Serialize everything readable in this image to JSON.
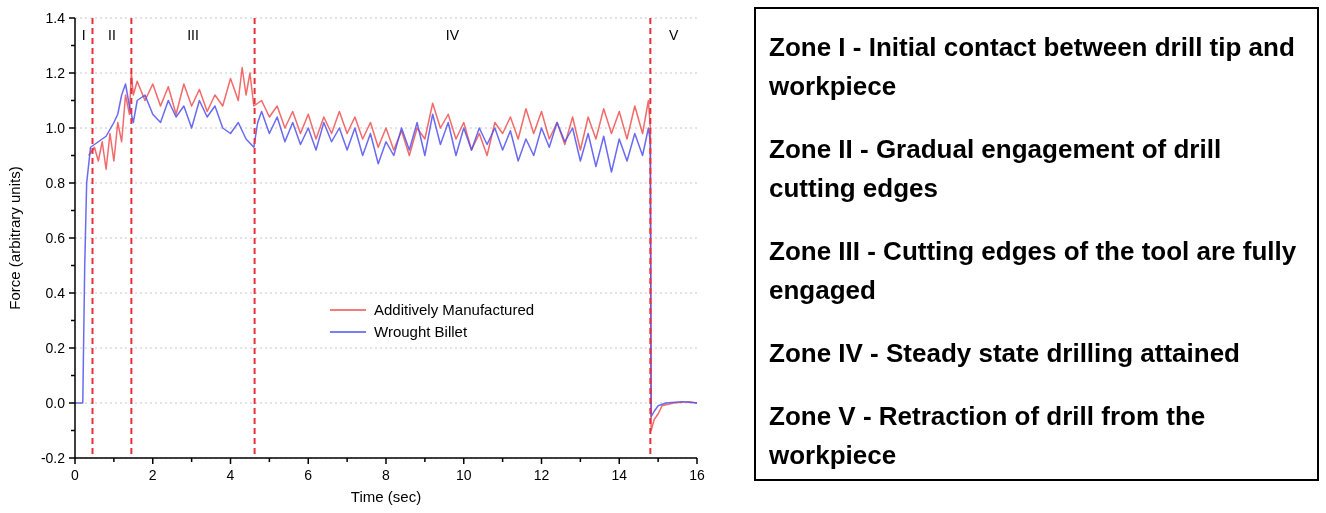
{
  "chart_data": [
    {
      "type": "line",
      "xlabel": "Time (sec)",
      "ylabel": "Force (arbitrary units)",
      "xlim": [
        0,
        16
      ],
      "ylim": [
        -0.2,
        1.4
      ],
      "xticks": [
        0,
        {
          "value": 1,
          "label": null
        },
        2,
        {
          "value": 3,
          "label": null
        },
        4,
        {
          "value": 5,
          "label": null
        },
        6,
        {
          "value": 7,
          "label": null
        },
        8,
        {
          "value": 9,
          "label": null
        },
        10,
        {
          "value": 11,
          "label": null
        },
        12,
        {
          "value": 13,
          "label": null
        },
        14,
        {
          "value": 15,
          "label": null
        },
        16
      ],
      "yticks": [
        {
          "value": -0.2,
          "label": "-0.2"
        },
        {
          "value": -0.1,
          "label": null
        },
        {
          "value": 0,
          "label": "0.0"
        },
        {
          "value": 0.1,
          "label": null
        },
        {
          "value": 0.2,
          "label": "0.2"
        },
        {
          "value": 0.3,
          "label": null
        },
        {
          "value": 0.4,
          "label": "0.4"
        },
        {
          "value": 0.5,
          "label": null
        },
        {
          "value": 0.6,
          "label": "0.6"
        },
        {
          "value": 0.7,
          "label": null
        },
        {
          "value": 0.8,
          "label": "0.8"
        },
        {
          "value": 0.9,
          "label": null
        },
        {
          "value": 1,
          "label": "1.0"
        },
        {
          "value": 1.1,
          "label": null
        },
        {
          "value": 1.2,
          "label": "1.2"
        },
        {
          "value": 1.3,
          "label": null
        },
        {
          "value": 1.4,
          "label": "1.4"
        }
      ],
      "grid": "y",
      "legend": "center",
      "line_style": "solid",
      "series": [
        {
          "name": "Additively Manufactured",
          "color": "#f05050",
          "x": [
            0.35,
            0.5,
            0.6,
            0.7,
            0.8,
            0.9,
            1.0,
            1.1,
            1.2,
            1.3,
            1.4,
            1.45,
            1.5,
            1.6,
            1.8,
            2.0,
            2.2,
            2.4,
            2.6,
            2.8,
            3.0,
            3.2,
            3.4,
            3.6,
            3.8,
            4.0,
            4.2,
            4.3,
            4.4,
            4.5,
            4.6,
            4.8,
            5.0,
            5.2,
            5.4,
            5.6,
            5.8,
            6.0,
            6.2,
            6.4,
            6.6,
            6.8,
            7.0,
            7.2,
            7.4,
            7.6,
            7.8,
            8.0,
            8.2,
            8.4,
            8.6,
            8.8,
            9.0,
            9.2,
            9.4,
            9.6,
            9.8,
            10.0,
            10.2,
            10.4,
            10.6,
            10.8,
            11.0,
            11.2,
            11.4,
            11.6,
            11.8,
            12.0,
            12.2,
            12.4,
            12.6,
            12.8,
            13.0,
            13.2,
            13.4,
            13.6,
            13.8,
            14.0,
            14.2,
            14.4,
            14.6,
            14.75,
            14.8,
            14.82,
            14.9,
            15.0,
            15.1,
            15.4,
            15.8,
            16
          ],
          "values": [
            0.9,
            0.93,
            0.88,
            0.95,
            0.85,
            0.98,
            0.88,
            1.02,
            0.95,
            1.12,
            1.05,
            1.2,
            1.12,
            1.17,
            1.1,
            1.16,
            1.08,
            1.15,
            1.05,
            1.16,
            1.08,
            1.14,
            1.06,
            1.12,
            1.08,
            1.18,
            1.1,
            1.22,
            1.12,
            1.2,
            1.08,
            1.1,
            1.04,
            1.08,
            1.0,
            1.06,
            0.98,
            1.05,
            0.96,
            1.04,
            0.98,
            1.06,
            0.98,
            1.04,
            0.96,
            1.02,
            0.93,
            1.0,
            0.92,
            0.99,
            0.9,
            1.0,
            0.96,
            1.09,
            1.0,
            1.05,
            0.96,
            1.02,
            0.92,
            0.98,
            0.9,
            1.02,
            0.98,
            1.04,
            0.96,
            1.07,
            0.98,
            1.06,
            0.96,
            1.02,
            0.94,
            1.04,
            0.92,
            1.04,
            0.96,
            1.07,
            0.98,
            1.06,
            0.96,
            1.08,
            0.98,
            1.1,
            1.0,
            -0.1,
            -0.06,
            -0.04,
            -0.01,
            0,
            0.005,
            0
          ]
        },
        {
          "name": "Wrought Billet",
          "color": "#5050f0",
          "x": [
            0,
            0.2,
            0.25,
            0.3,
            0.4,
            0.6,
            0.8,
            1.0,
            1.1,
            1.2,
            1.3,
            1.4,
            1.5,
            1.6,
            1.8,
            2.0,
            2.2,
            2.4,
            2.6,
            2.8,
            3.0,
            3.2,
            3.4,
            3.6,
            3.8,
            4.0,
            4.2,
            4.4,
            4.6,
            4.7,
            4.8,
            5.0,
            5.2,
            5.4,
            5.6,
            5.8,
            6.0,
            6.2,
            6.4,
            6.6,
            6.8,
            7.0,
            7.2,
            7.4,
            7.6,
            7.8,
            8.0,
            8.2,
            8.4,
            8.6,
            8.8,
            9.0,
            9.2,
            9.4,
            9.6,
            9.8,
            10.0,
            10.2,
            10.4,
            10.6,
            10.8,
            11.0,
            11.2,
            11.4,
            11.6,
            11.8,
            12.0,
            12.2,
            12.4,
            12.6,
            12.8,
            13.0,
            13.2,
            13.4,
            13.6,
            13.8,
            14.0,
            14.2,
            14.4,
            14.6,
            14.75,
            14.8,
            14.82,
            14.9,
            15.0,
            15.2,
            15.6,
            16
          ],
          "values": [
            0,
            0,
            0.5,
            0.8,
            0.93,
            0.95,
            0.97,
            1.02,
            1.05,
            1.12,
            1.16,
            1.08,
            1.02,
            1.1,
            1.12,
            1.05,
            1.02,
            1.1,
            1.04,
            1.08,
            1.0,
            1.1,
            1.04,
            1.08,
            1.0,
            0.98,
            1.02,
            0.96,
            0.93,
            1.02,
            1.06,
            0.98,
            1.04,
            0.95,
            1.02,
            0.94,
            1.0,
            0.92,
            1.02,
            0.95,
            1.0,
            0.92,
            1.0,
            0.9,
            0.98,
            0.87,
            0.95,
            0.9,
            1.0,
            0.92,
            1.02,
            0.9,
            1.05,
            0.94,
            1.02,
            0.9,
            1.0,
            0.92,
            1.0,
            0.94,
            1.0,
            0.92,
            0.99,
            0.88,
            0.96,
            0.9,
            1.0,
            0.93,
            1.02,
            0.95,
            1.0,
            0.88,
            0.98,
            0.86,
            0.97,
            0.84,
            0.96,
            0.88,
            0.98,
            0.9,
            1.0,
            0.95,
            -0.05,
            -0.03,
            -0.01,
            0,
            0.005,
            0
          ]
        }
      ],
      "ref_lines": [
        {
          "axis": "x",
          "value": 0.45,
          "color": "#e8303a",
          "line_style": "dashed"
        },
        {
          "axis": "x",
          "value": 1.45,
          "color": "#e8303a",
          "line_style": "dashed"
        },
        {
          "axis": "x",
          "value": 4.62,
          "color": "#e8303a",
          "line_style": "dashed"
        },
        {
          "axis": "x",
          "value": 14.8,
          "color": "#e8303a",
          "line_style": "dashed"
        }
      ],
      "annotations": [
        "I",
        "II",
        "III",
        "IV",
        "V"
      ]
    },
    {
      "type": "other",
      "annotations": [
        "Zone I - Initial contact between drill tip and workpiece",
        "Zone II - Gradual engagement of drill cutting edges",
        "Zone III - Cutting edges of the tool are fully engaged",
        "Zone IV - Steady state drilling attained",
        "Zone V - Retraction of drill from the workpiece"
      ]
    }
  ]
}
